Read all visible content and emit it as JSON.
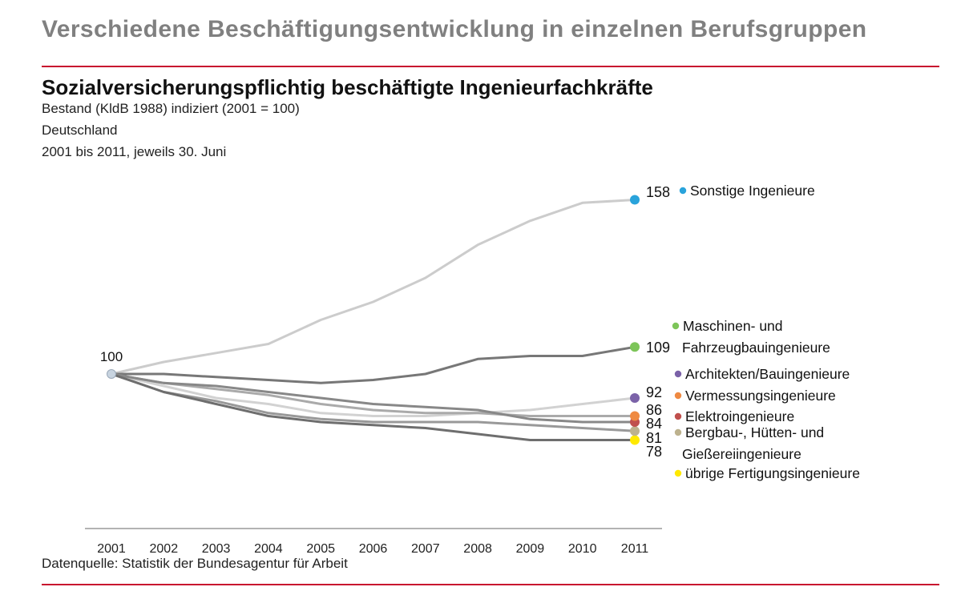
{
  "header": {
    "title": "Verschiedene Beschäftigungsentwicklung in einzelnen Berufsgruppen"
  },
  "source": "Datenquelle: Statistik der Bundesagentur für Arbeit",
  "colors": {
    "rule": "#c8102e",
    "header": "#808080"
  },
  "chart_data": {
    "type": "line",
    "title": "Sozialversicherungspflichtig beschäftigte Ingenieurfachkräfte",
    "subtitles": [
      "Bestand (KldB 1988) indiziert (2001 = 100)",
      "Deutschland",
      "2001 bis 2011, jeweils 30. Juni"
    ],
    "x": [
      "2001",
      "2002",
      "2003",
      "2004",
      "2005",
      "2006",
      "2007",
      "2008",
      "2009",
      "2010",
      "2011"
    ],
    "ylim": [
      60,
      170
    ],
    "grid": false,
    "legend_position": "right",
    "start_label": "100",
    "series": [
      {
        "name": "Sonstige Ingenieure",
        "color": "#29a3db",
        "end_label": "158",
        "line_color": "#cccccc",
        "values": [
          100,
          104,
          107,
          110,
          118,
          124,
          132,
          143,
          151,
          157,
          158
        ]
      },
      {
        "name": "Maschinen- und Fahrzeugbauingenieure",
        "legend_lines": [
          "Maschinen- und",
          "Fahrzeugbauingenieure"
        ],
        "color": "#7dc559",
        "end_label": "109",
        "line_color": "#777777",
        "values": [
          100,
          100,
          99,
          98,
          97,
          98,
          100,
          105,
          106,
          106,
          109
        ]
      },
      {
        "name": "Architekten/Bauingenieure",
        "color": "#7b62a8",
        "end_label": "92",
        "line_color": "#d2d2d2",
        "values": [
          100,
          96,
          92,
          90,
          87,
          86,
          86,
          87,
          88,
          90,
          92
        ]
      },
      {
        "name": "Vermessungsingenieure",
        "color": "#ef8a42",
        "end_label": "86",
        "line_color": "#aaaaaa",
        "values": [
          100,
          97,
          95,
          93,
          90,
          88,
          87,
          87,
          86,
          86,
          86
        ]
      },
      {
        "name": "Elektroingenieure",
        "color": "#c0504d",
        "end_label": "84",
        "line_color": "#888888",
        "values": [
          100,
          97,
          96,
          94,
          92,
          90,
          89,
          88,
          85,
          84,
          84
        ]
      },
      {
        "name": "Bergbau-, Hütten- und Gießereiingenieure",
        "legend_lines": [
          "Bergbau-, Hütten- und",
          "Gießereiingenieure"
        ],
        "color": "#bdb28e",
        "end_label": "81",
        "line_color": "#999999",
        "values": [
          100,
          94,
          91,
          87,
          85,
          84,
          84,
          84,
          83,
          82,
          81
        ]
      },
      {
        "name": "übrige Fertigungsingenieure",
        "color": "#ffe900",
        "end_label": "78",
        "line_color": "#6e6e6e",
        "values": [
          100,
          94,
          90,
          86,
          84,
          83,
          82,
          80,
          78,
          78,
          78
        ]
      }
    ]
  }
}
